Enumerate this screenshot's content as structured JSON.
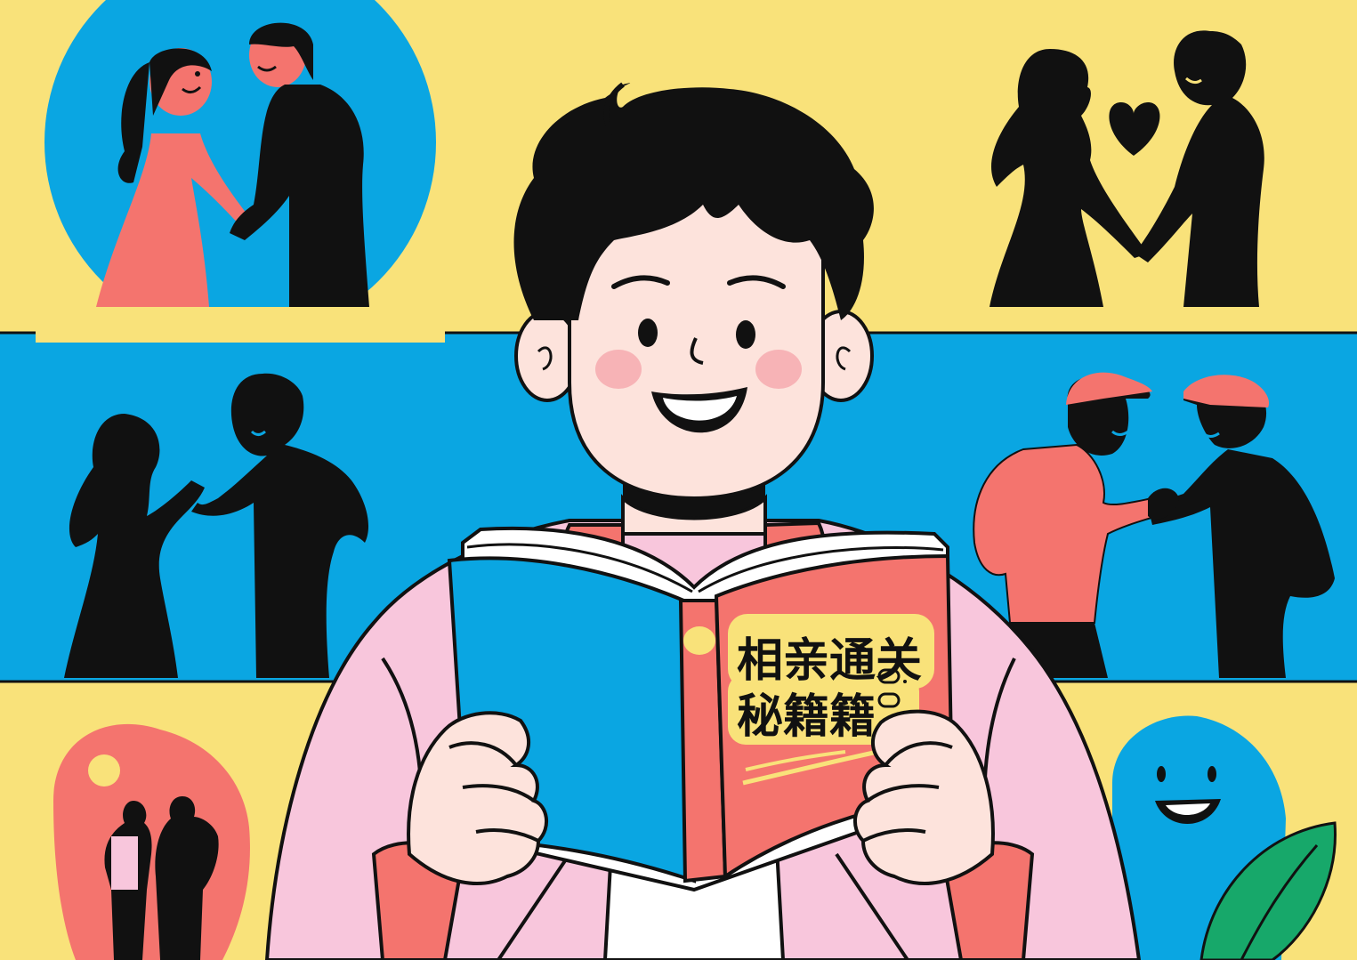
{
  "illustration": {
    "book": {
      "title_line1": "相亲通关",
      "title_line2": "秘籍籍"
    },
    "colors": {
      "background_yellow": "#f9e27a",
      "band_blue": "#0aa6e2",
      "accent_coral": "#f4746e",
      "jacket_pink": "#f8c6dc",
      "skin": "#fde3dc",
      "leaf_green": "#17a86a",
      "ink": "#111111"
    }
  }
}
